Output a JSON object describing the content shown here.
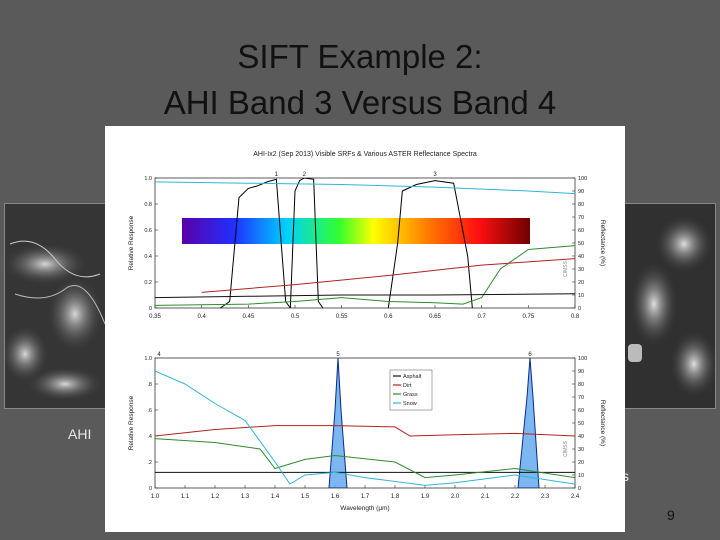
{
  "slide": {
    "title_line1": "SIFT Example 2:",
    "title_line2": "AHI Band  3 Versus Band 4",
    "caption_left": "AHI",
    "caption_right": "s",
    "page_number": "9"
  },
  "chart_data": [
    {
      "type": "line",
      "title": "AHI-Ix2 (Sep 2013) Visible SRFs & Various ASTER Reflectance Spectra",
      "ylabel": "Relative Response",
      "y2label": "Reflectance (%)",
      "x_ticks": [
        "0.35",
        "0.4",
        "0.45",
        "0.5",
        "0.55",
        "0.6",
        "0.65",
        "0.7",
        "0.75",
        "0.8"
      ],
      "xlim": [
        0.35,
        0.8
      ],
      "ylim": [
        0,
        1.0
      ],
      "y_ticks": [
        "0",
        "0.2",
        "0.4",
        "0.6",
        "0.8",
        "1.0"
      ],
      "y2lim": [
        0,
        100
      ],
      "y2_ticks": [
        "0",
        "10",
        "20",
        "30",
        "40",
        "50",
        "60",
        "70",
        "80",
        "90",
        "100"
      ],
      "band_labels": [
        "1",
        "2",
        "3"
      ],
      "watermark": "CIMSS",
      "srf_bands": [
        {
          "label": "1",
          "points": [
            [
              0.42,
              0
            ],
            [
              0.43,
              0.05
            ],
            [
              0.44,
              0.85
            ],
            [
              0.45,
              0.92
            ],
            [
              0.46,
              0.94
            ],
            [
              0.47,
              0.97
            ],
            [
              0.48,
              0.99
            ],
            [
              0.49,
              0.05
            ],
            [
              0.495,
              0
            ]
          ]
        },
        {
          "label": "2",
          "points": [
            [
              0.495,
              0
            ],
            [
              0.5,
              0.9
            ],
            [
              0.505,
              0.98
            ],
            [
              0.51,
              1.0
            ],
            [
              0.52,
              0.99
            ],
            [
              0.525,
              0.05
            ],
            [
              0.53,
              0
            ]
          ]
        },
        {
          "label": "3",
          "points": [
            [
              0.6,
              0
            ],
            [
              0.61,
              0.5
            ],
            [
              0.615,
              0.9
            ],
            [
              0.63,
              0.95
            ],
            [
              0.65,
              0.98
            ],
            [
              0.67,
              0.96
            ],
            [
              0.685,
              0.4
            ],
            [
              0.69,
              0
            ]
          ]
        }
      ],
      "series": [
        {
          "name": "Snow",
          "color": "#31b6d6",
          "values": [
            [
              0.35,
              97
            ],
            [
              0.45,
              96
            ],
            [
              0.55,
              95
            ],
            [
              0.65,
              93
            ],
            [
              0.75,
              90
            ],
            [
              0.8,
              88
            ]
          ]
        },
        {
          "name": "Grass",
          "color": "#2e8b2e",
          "values": [
            [
              0.35,
              2
            ],
            [
              0.45,
              3
            ],
            [
              0.5,
              5
            ],
            [
              0.55,
              8
            ],
            [
              0.6,
              5
            ],
            [
              0.65,
              4
            ],
            [
              0.68,
              3
            ],
            [
              0.7,
              8
            ],
            [
              0.72,
              30
            ],
            [
              0.75,
              45
            ],
            [
              0.8,
              48
            ]
          ]
        },
        {
          "name": "Dirt",
          "color": "#b22222",
          "values": [
            [
              0.4,
              12
            ],
            [
              0.5,
              18
            ],
            [
              0.6,
              25
            ],
            [
              0.7,
              33
            ],
            [
              0.8,
              38
            ]
          ]
        },
        {
          "name": "Asphalt",
          "color": "#111111",
          "values": [
            [
              0.35,
              8
            ],
            [
              0.45,
              9
            ],
            [
              0.55,
              10
            ],
            [
              0.65,
              10
            ],
            [
              0.8,
              11
            ]
          ]
        }
      ]
    },
    {
      "type": "line",
      "ylabel": "Relative Response",
      "y2label": "Reflectance (%)",
      "xlabel": "Wavelength (μm)",
      "x_ticks": [
        "1.0",
        "1.1",
        "1.2",
        "1.3",
        "1.4",
        "1.5",
        "1.6",
        "1.7",
        "1.8",
        "1.9",
        "2.0",
        "2.1",
        "2.2",
        "2.3",
        "2.4"
      ],
      "xlim": [
        1.0,
        2.4
      ],
      "ylim": [
        0,
        1.0
      ],
      "y_ticks": [
        "0",
        ".2",
        ".4",
        ".6",
        ".8",
        "1.0"
      ],
      "y2lim": [
        0,
        100
      ],
      "y2_ticks": [
        "0",
        "10",
        "20",
        "30",
        "40",
        "50",
        "60",
        "70",
        "80",
        "90",
        "100"
      ],
      "band_labels": [
        "4",
        "5",
        "6"
      ],
      "watermark": "CIMSS",
      "legend": [
        "Asphalt",
        "Dirt",
        "Grass",
        "Snow"
      ],
      "legend_position": "top-center",
      "srf_bands": [
        {
          "label": "4",
          "points": [
            [
              0.84,
              0
            ],
            [
              0.85,
              0.9
            ],
            [
              0.87,
              0.95
            ],
            [
              0.875,
              0
            ]
          ]
        },
        {
          "label": "5",
          "points": [
            [
              1.58,
              0
            ],
            [
              1.6,
              0.6
            ],
            [
              1.61,
              1.0
            ],
            [
              1.62,
              0.6
            ],
            [
              1.64,
              0
            ]
          ]
        },
        {
          "label": "6",
          "points": [
            [
              2.21,
              0
            ],
            [
              2.24,
              0.7
            ],
            [
              2.25,
              1.0
            ],
            [
              2.26,
              0.7
            ],
            [
              2.28,
              0
            ]
          ]
        }
      ],
      "series": [
        {
          "name": "Asphalt",
          "color": "#111111",
          "values": [
            [
              1.0,
              12
            ],
            [
              2.4,
              12
            ]
          ]
        },
        {
          "name": "Dirt",
          "color": "#b22222",
          "values": [
            [
              1.0,
              40
            ],
            [
              1.2,
              45
            ],
            [
              1.4,
              48
            ],
            [
              1.6,
              48
            ],
            [
              1.8,
              47
            ],
            [
              1.85,
              40
            ],
            [
              2.0,
              41
            ],
            [
              2.2,
              42
            ],
            [
              2.4,
              40
            ]
          ]
        },
        {
          "name": "Grass",
          "color": "#2e8b2e",
          "values": [
            [
              1.0,
              38
            ],
            [
              1.2,
              35
            ],
            [
              1.35,
              30
            ],
            [
              1.4,
              15
            ],
            [
              1.5,
              22
            ],
            [
              1.6,
              25
            ],
            [
              1.8,
              20
            ],
            [
              1.9,
              8
            ],
            [
              2.0,
              10
            ],
            [
              2.2,
              15
            ],
            [
              2.4,
              8
            ]
          ]
        },
        {
          "name": "Snow",
          "color": "#31b6d6",
          "values": [
            [
              1.0,
              90
            ],
            [
              1.1,
              80
            ],
            [
              1.2,
              65
            ],
            [
              1.3,
              52
            ],
            [
              1.4,
              20
            ],
            [
              1.45,
              3
            ],
            [
              1.5,
              10
            ],
            [
              1.6,
              12
            ],
            [
              1.7,
              8
            ],
            [
              1.9,
              2
            ],
            [
              2.0,
              4
            ],
            [
              2.2,
              10
            ],
            [
              2.4,
              3
            ]
          ]
        }
      ]
    }
  ]
}
